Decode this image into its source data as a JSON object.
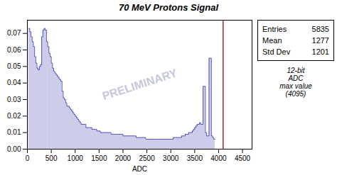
{
  "chart_data": {
    "type": "histogram",
    "title": "70 MeV Protons Signal",
    "xlabel": "ADC",
    "xlim": [
      0,
      4700
    ],
    "ylim": [
      0,
      0.078
    ],
    "xticks": [
      0,
      500,
      1000,
      1500,
      2000,
      2500,
      3000,
      3500,
      4000,
      4500
    ],
    "yticks": [
      {
        "value": 0,
        "label": "0.00"
      },
      0.01,
      0.02,
      0.03,
      0.04,
      0.05,
      0.06,
      0.07
    ],
    "grid": false,
    "color": "#3333aa",
    "bins": [
      25,
      50,
      75,
      100,
      125,
      150,
      175,
      200,
      225,
      250,
      275,
      300,
      325,
      350,
      375,
      400,
      425,
      450,
      475,
      500,
      525,
      550,
      575,
      600,
      625,
      650,
      675,
      700,
      725,
      750,
      775,
      800,
      825,
      850,
      875,
      900,
      925,
      950,
      975,
      1000,
      1025,
      1050,
      1075,
      1100,
      1125,
      1150,
      1175,
      1200,
      1225,
      1250,
      1275,
      1300,
      1325,
      1350,
      1375,
      1400,
      1425,
      1450,
      1475,
      1500,
      1525,
      1550,
      1575,
      1600,
      1625,
      1650,
      1675,
      1700,
      1725,
      1750,
      1775,
      1800,
      1825,
      1850,
      1875,
      1900,
      1925,
      1950,
      1975,
      2000,
      2025,
      2050,
      2075,
      2100,
      2125,
      2150,
      2175,
      2200,
      2225,
      2250,
      2275,
      2300,
      2325,
      2350,
      2375,
      2400,
      2425,
      2450,
      2475,
      2500,
      2525,
      2550,
      2575,
      2600,
      2625,
      2650,
      2675,
      2700,
      2725,
      2750,
      2775,
      2800,
      2825,
      2850,
      2875,
      2900,
      2925,
      2950,
      2975,
      3000,
      3025,
      3050,
      3075,
      3100,
      3125,
      3150,
      3175,
      3200,
      3225,
      3250,
      3275,
      3300,
      3325,
      3350,
      3375,
      3400,
      3425,
      3450,
      3475,
      3500,
      3525,
      3550,
      3575,
      3600,
      3625,
      3650,
      3675,
      3700,
      3725,
      3750,
      3775,
      3800,
      3825,
      3850,
      3875,
      3900,
      3925
    ],
    "values": [
      0.073,
      0.071,
      0.068,
      0.065,
      0.062,
      0.056,
      0.052,
      0.049,
      0.048,
      0.05,
      0.051,
      0.068,
      0.072,
      0.073,
      0.072,
      0.065,
      0.062,
      0.058,
      0.056,
      0.052,
      0.049,
      0.047,
      0.046,
      0.045,
      0.044,
      0.043,
      0.042,
      0.041,
      0.035,
      0.031,
      0.03,
      0.028,
      0.026,
      0.026,
      0.025,
      0.024,
      0.023,
      0.022,
      0.021,
      0.02,
      0.019,
      0.018,
      0.017,
      0.016,
      0.015,
      0.015,
      0.015,
      0.015,
      0.013,
      0.013,
      0.013,
      0.013,
      0.013,
      0.012,
      0.012,
      0.012,
      0.012,
      0.011,
      0.011,
      0.011,
      0.01,
      0.01,
      0.01,
      0.01,
      0.01,
      0.01,
      0.01,
      0.01,
      0.01,
      0.009,
      0.009,
      0.009,
      0.009,
      0.009,
      0.009,
      0.009,
      0.009,
      0.009,
      0.009,
      0.008,
      0.008,
      0.008,
      0.008,
      0.008,
      0.008,
      0.008,
      0.008,
      0.008,
      0.008,
      0.008,
      0.007,
      0.007,
      0.007,
      0.007,
      0.007,
      0.007,
      0.007,
      0.007,
      0.006,
      0.006,
      0.006,
      0.006,
      0.006,
      0.006,
      0.006,
      0.006,
      0.006,
      0.006,
      0.006,
      0.006,
      0.006,
      0.006,
      0.006,
      0.006,
      0.006,
      0.006,
      0.006,
      0.006,
      0.006,
      0.006,
      0.006,
      0.007,
      0.007,
      0.007,
      0.007,
      0.007,
      0.007,
      0.007,
      0.008,
      0.008,
      0.008,
      0.009,
      0.009,
      0.009,
      0.01,
      0.01,
      0.01,
      0.011,
      0.012,
      0.013,
      0.014,
      0.015,
      0.015,
      0.016,
      0.015,
      0.015,
      0.038,
      0.038,
      0.01,
      0.008,
      0.008,
      0.055,
      0.055,
      0.008,
      0.007,
      0.006
    ],
    "reference_lines": [
      {
        "x": 4095,
        "color": "#bb2222"
      }
    ],
    "annotations": [
      {
        "text": "PRELIMINARY",
        "color": "#c8c8dc"
      },
      {
        "text": "12-bit\nADC\nmax value\n(4095)"
      }
    ],
    "stats": [
      {
        "label": "Entries",
        "value": 5835
      },
      {
        "label": "Mean",
        "value": 1277
      },
      {
        "label": "Std Dev",
        "value": 1201
      }
    ]
  }
}
